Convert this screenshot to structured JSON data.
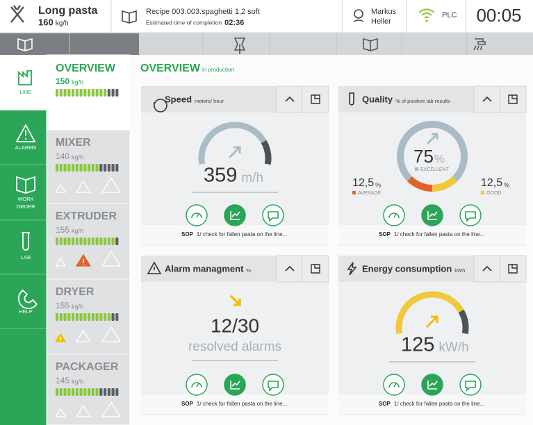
{
  "header": {
    "product": {
      "name": "Long pasta",
      "rate": "160",
      "unit": "kg/h"
    },
    "recipe": {
      "name": "Recipe 003.003.spaghetti 1,2 soft",
      "estimate_label": "Estimated time of completion",
      "estimate": "02:36"
    },
    "user": {
      "first_name": "Markus",
      "last_name": "Heller"
    },
    "connection": "PLC",
    "clock": "00:05"
  },
  "nav": [
    {
      "lines": [
        "LINE"
      ]
    },
    {
      "lines": [
        "ALARMS"
      ]
    },
    {
      "lines": [
        "WORK",
        "ORDER"
      ]
    },
    {
      "lines": [
        "LAB"
      ]
    },
    {
      "lines": [
        "HELP"
      ]
    }
  ],
  "stations": [
    {
      "name": "OVERVIEW",
      "rate": "150",
      "unit": "kg/h",
      "segments_filled": 13,
      "segments_total": 16
    },
    {
      "name": "MIXER",
      "rate": "140",
      "unit": "kg/h",
      "segments_filled": 11,
      "segments_total": 16
    },
    {
      "name": "EXTRUDER",
      "rate": "155",
      "unit": "kg/h",
      "segments_filled": 15,
      "segments_total": 16
    },
    {
      "name": "DRYER",
      "rate": "155",
      "unit": "kg/h",
      "segments_filled": 14,
      "segments_total": 16
    },
    {
      "name": "PACKAGER",
      "rate": "145",
      "unit": "kg/h",
      "segments_filled": 11,
      "segments_total": 16
    }
  ],
  "main": {
    "title": "OVERVIEW",
    "subtitle": "in production",
    "cards": [
      {
        "kind": "gauge",
        "title": "Speed",
        "unit": "meters/ hour",
        "value": "359",
        "value_unit": "m/h",
        "color": "#a9bcc6",
        "sop": {
          "label": "SOP",
          "text": "1/ check for fallen pasta on the line..."
        }
      },
      {
        "kind": "donut",
        "title": "Quality",
        "unit": "% of positive lab results",
        "segments": [
          {
            "name": "EXCELLENT",
            "value": 75,
            "value_label": "75",
            "unit": "%",
            "color": "#a9bcc6"
          },
          {
            "name": "GOOD",
            "value": 12.5,
            "value_label": "12,5",
            "unit": "%",
            "color": "#f0c93a"
          },
          {
            "name": "AVERAGE",
            "value": 12.5,
            "value_label": "12,5",
            "unit": "%",
            "color": "#e0642a"
          }
        ],
        "sop": {
          "label": "SOP",
          "text": "1/ check for fallen pasta on the line..."
        }
      },
      {
        "kind": "ratio",
        "title": "Alarm managment",
        "unit": "%",
        "value": "12/30",
        "caption": "resolved alarms",
        "sop": {
          "label": "SOP",
          "text": "1/ check for fallen pasta on the line..."
        }
      },
      {
        "kind": "gauge",
        "title": "Energy consumption",
        "unit": "kWh",
        "value": "125",
        "value_unit": "kW/h",
        "color": "#f0c93a",
        "sop": {
          "label": "SOP",
          "text": "1/ check for fallen pasta on the line..."
        }
      }
    ]
  }
}
